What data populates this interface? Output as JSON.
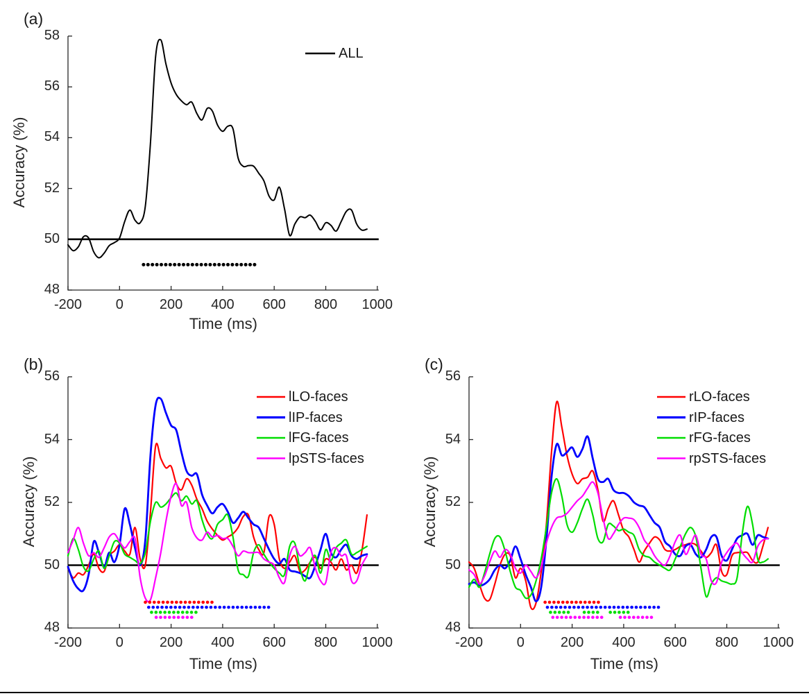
{
  "figure": {
    "background": "#ffffff",
    "bottom_rule_color": "#000000",
    "axis_color": "#262626"
  },
  "chart_data": {
    "type": "line",
    "x_start": -200,
    "x_step": 20,
    "panels": [
      {
        "id": "a",
        "tag": "(a)",
        "xlabel": "Time (ms)",
        "ylabel": "Accuracy (%)",
        "xlim": [
          -200,
          1000
        ],
        "ylim": [
          48,
          58
        ],
        "xticks": [
          -200,
          0,
          200,
          400,
          600,
          800,
          1000
        ],
        "yticks": [
          48,
          50,
          52,
          54,
          56,
          58
        ],
        "chance_level": 50,
        "legend_position": "upper right inside",
        "grid": false,
        "series": [
          {
            "name": "ALL",
            "color": "#000000",
            "values": [
              49.78,
              49.55,
              49.7,
              50.1,
              50.05,
              49.5,
              49.27,
              49.45,
              49.75,
              49.87,
              50.05,
              50.7,
              51.15,
              50.75,
              50.65,
              51.3,
              53.8,
              57.2,
              57.85,
              56.9,
              56.15,
              55.7,
              55.45,
              55.3,
              55.4,
              54.95,
              54.7,
              55.15,
              55.05,
              54.5,
              54.25,
              54.45,
              54.35,
              53.2,
              52.87,
              52.9,
              52.88,
              52.6,
              52.3,
              51.7,
              51.55,
              52.05,
              51.2,
              50.15,
              50.6,
              50.88,
              50.85,
              50.95,
              50.7,
              50.37,
              50.65,
              50.55,
              50.32,
              50.7,
              51.1,
              51.15,
              50.6,
              50.36,
              50.4
            ]
          }
        ],
        "significance_markers": [
          {
            "name": "ALL",
            "color": "#000000",
            "y": 49.0,
            "segments_ms": [
              [
                93,
                535
              ]
            ]
          }
        ]
      },
      {
        "id": "b",
        "tag": "(b)",
        "xlabel": "Time (ms)",
        "ylabel": "Accuracy (%)",
        "xlim": [
          -200,
          1000
        ],
        "ylim": [
          48,
          56
        ],
        "xticks": [
          -200,
          0,
          200,
          400,
          600,
          800,
          1000
        ],
        "yticks": [
          48,
          50,
          52,
          54,
          56
        ],
        "chance_level": 50,
        "legend_position": "upper right inside",
        "grid": false,
        "series": [
          {
            "name": "lLO-faces",
            "color": "#ff0000",
            "values": [
              49.9,
              49.6,
              49.75,
              49.7,
              50.0,
              50.35,
              49.9,
              49.8,
              50.3,
              50.45,
              50.65,
              50.45,
              50.35,
              51.2,
              50.2,
              50.0,
              51.7,
              53.8,
              53.4,
              53.1,
              53.15,
              52.6,
              52.4,
              52.75,
              52.55,
              52.1,
              51.8,
              51.4,
              51.15,
              50.95,
              50.8,
              50.9,
              51.0,
              51.2,
              51.55,
              51.6,
              50.9,
              50.5,
              50.4,
              51.55,
              51.3,
              50.2,
              49.9,
              50.1,
              50.3,
              49.8,
              49.85,
              50.1,
              50.25,
              49.9,
              50.2,
              50.1,
              49.85,
              50.2,
              49.85,
              50.0,
              49.75,
              50.45,
              51.6
            ]
          },
          {
            "name": "lIP-faces",
            "color": "#0000ff",
            "values": [
              49.95,
              49.5,
              49.25,
              49.2,
              49.7,
              50.75,
              50.4,
              49.95,
              50.4,
              50.1,
              50.65,
              51.8,
              51.3,
              50.55,
              50.0,
              50.8,
              53.5,
              55.1,
              55.3,
              54.85,
              54.45,
              54.3,
              53.6,
              53.0,
              52.85,
              52.9,
              52.25,
              51.9,
              51.65,
              51.85,
              51.95,
              51.7,
              51.35,
              51.5,
              51.7,
              51.5,
              51.3,
              51.2,
              50.85,
              50.5,
              50.2,
              50.05,
              50.2,
              49.85,
              49.8,
              49.75,
              49.65,
              49.6,
              50.0,
              50.5,
              51.0,
              50.4,
              50.25,
              50.5,
              50.65,
              50.3,
              50.2,
              50.3,
              50.35
            ]
          },
          {
            "name": "lFG-faces",
            "color": "#00dd00",
            "values": [
              50.3,
              50.85,
              50.5,
              49.95,
              49.82,
              50.2,
              50.45,
              49.9,
              50.3,
              50.75,
              50.7,
              50.35,
              50.25,
              50.15,
              50.05,
              50.4,
              51.4,
              52.0,
              51.85,
              51.95,
              52.15,
              52.3,
              52.05,
              52.2,
              51.95,
              52.05,
              51.45,
              51.0,
              50.85,
              51.3,
              51.45,
              51.6,
              50.9,
              49.85,
              49.7,
              49.65,
              50.4,
              50.65,
              50.35,
              50.1,
              49.9,
              49.75,
              49.7,
              50.6,
              50.7,
              49.9,
              49.5,
              50.1,
              50.3,
              49.75,
              50.5,
              50.15,
              50.55,
              50.7,
              50.8,
              50.35,
              50.4,
              50.5,
              50.6
            ]
          },
          {
            "name": "lpSTS-faces",
            "color": "#ff00ff",
            "values": [
              50.4,
              50.8,
              51.2,
              50.7,
              50.3,
              50.4,
              50.25,
              50.55,
              50.9,
              51.0,
              50.75,
              50.55,
              50.75,
              50.85,
              49.6,
              48.95,
              48.9,
              49.6,
              50.4,
              51.4,
              52.2,
              52.6,
              51.9,
              52.0,
              51.2,
              50.87,
              50.8,
              51.05,
              50.9,
              50.95,
              50.85,
              50.85,
              50.6,
              50.3,
              50.45,
              50.4,
              50.4,
              50.4,
              50.2,
              50.1,
              50.0,
              49.6,
              49.45,
              50.3,
              50.6,
              50.3,
              50.4,
              50.55,
              49.9,
              49.5,
              49.45,
              50.4,
              50.55,
              50.3,
              50.3,
              49.5,
              49.5,
              50.0,
              50.3
            ]
          }
        ],
        "significance_markers": [
          {
            "name": "lLO-faces",
            "color": "#ff0000",
            "y": 48.82,
            "segments_ms": [
              [
                100,
                360
              ]
            ]
          },
          {
            "name": "lIP-faces",
            "color": "#0000ff",
            "y": 48.66,
            "segments_ms": [
              [
                113,
                580
              ]
            ]
          },
          {
            "name": "lFG-faces",
            "color": "#00dd00",
            "y": 48.5,
            "segments_ms": [
              [
                124,
                309
              ]
            ]
          },
          {
            "name": "lpSTS-faces",
            "color": "#ff00ff",
            "y": 48.34,
            "segments_ms": [
              [
                142,
                292
              ]
            ]
          }
        ]
      },
      {
        "id": "c",
        "tag": "(c)",
        "xlabel": "Time (ms)",
        "ylabel": "Accuracy (%)",
        "xlim": [
          -200,
          1000
        ],
        "ylim": [
          48,
          56
        ],
        "xticks": [
          -200,
          0,
          200,
          400,
          600,
          800,
          1000
        ],
        "yticks": [
          48,
          50,
          52,
          54,
          56
        ],
        "chance_level": 50,
        "legend_position": "upper right inside",
        "grid": false,
        "series": [
          {
            "name": "rLO-faces",
            "color": "#ff0000",
            "values": [
              50.1,
              49.9,
              49.4,
              48.95,
              48.9,
              49.4,
              50.0,
              50.35,
              50.3,
              49.6,
              49.9,
              49.5,
              48.65,
              48.8,
              49.8,
              51.3,
              53.6,
              55.2,
              54.4,
              53.5,
              52.9,
              52.6,
              52.75,
              52.8,
              53.0,
              52.4,
              51.4,
              51.8,
              52.05,
              51.6,
              51.1,
              50.9,
              50.5,
              50.1,
              50.45,
              50.7,
              50.9,
              50.8,
              50.5,
              50.45,
              50.5,
              50.6,
              50.65,
              50.7,
              50.65,
              50.45,
              50.25,
              50.4,
              50.65,
              49.8,
              49.7,
              50.3,
              50.4,
              50.4,
              50.4,
              50.15,
              50.1,
              50.6,
              51.2
            ]
          },
          {
            "name": "rIP-faces",
            "color": "#0000ff",
            "values": [
              49.4,
              49.45,
              49.35,
              49.4,
              49.55,
              49.85,
              50.0,
              49.9,
              50.15,
              50.6,
              50.2,
              49.7,
              49.3,
              48.85,
              49.3,
              50.8,
              52.8,
              53.85,
              53.5,
              53.6,
              53.75,
              53.45,
              53.7,
              54.1,
              53.4,
              52.75,
              52.65,
              52.75,
              52.4,
              52.3,
              52.3,
              52.2,
              52.0,
              51.9,
              51.85,
              51.6,
              51.35,
              51.2,
              50.75,
              50.6,
              50.35,
              50.3,
              50.6,
              50.65,
              50.35,
              50.25,
              50.5,
              50.9,
              50.9,
              50.3,
              50.15,
              50.5,
              50.85,
              50.95,
              51.0,
              50.65,
              50.95,
              50.9,
              50.85
            ]
          },
          {
            "name": "rFG-faces",
            "color": "#00dd00",
            "values": [
              49.3,
              49.55,
              49.3,
              49.75,
              50.35,
              50.85,
              50.9,
              50.45,
              49.8,
              49.3,
              49.2,
              48.95,
              49.05,
              49.5,
              50.2,
              51.2,
              52.3,
              52.75,
              52.2,
              51.3,
              51.05,
              51.35,
              51.8,
              52.1,
              51.6,
              50.85,
              50.75,
              51.3,
              51.25,
              51.1,
              51.15,
              51.05,
              50.95,
              50.5,
              50.3,
              50.25,
              50.1,
              50.0,
              49.9,
              49.85,
              50.2,
              50.6,
              51.0,
              51.2,
              50.9,
              49.9,
              49.0,
              49.4,
              49.6,
              49.5,
              49.45,
              49.4,
              49.6,
              51.0,
              51.87,
              51.3,
              50.2,
              50.1,
              50.2
            ]
          },
          {
            "name": "rpSTS-faces",
            "color": "#ff00ff",
            "values": [
              49.85,
              49.7,
              49.4,
              49.65,
              50.1,
              50.45,
              50.25,
              50.5,
              50.35,
              49.9,
              49.75,
              50.0,
              49.8,
              49.6,
              49.95,
              50.7,
              51.2,
              51.5,
              51.55,
              51.65,
              51.85,
              52.05,
              52.2,
              52.45,
              52.65,
              52.3,
              51.5,
              50.85,
              51.0,
              51.3,
              51.5,
              51.5,
              51.45,
              51.2,
              50.8,
              50.6,
              50.3,
              50.1,
              50.0,
              50.3,
              50.75,
              50.95,
              50.35,
              50.65,
              50.95,
              50.35,
              50.2,
              49.5,
              49.45,
              50.1,
              50.4,
              50.6,
              50.7,
              50.4,
              50.2,
              50.1,
              50.6,
              50.8,
              50.85
            ]
          }
        ],
        "significance_markers": [
          {
            "name": "rLO-faces",
            "color": "#ff0000",
            "y": 48.82,
            "segments_ms": [
              [
                95,
                317
              ]
            ]
          },
          {
            "name": "rIP-faces",
            "color": "#0000ff",
            "y": 48.66,
            "segments_ms": [
              [
                104,
                551
              ]
            ]
          },
          {
            "name": "rFG-faces",
            "color": "#00dd00",
            "y": 48.5,
            "segments_ms": [
              [
                116,
                190
              ],
              [
                247,
                306
              ],
              [
                348,
                434
              ]
            ]
          },
          {
            "name": "rpSTS-faces",
            "color": "#ff00ff",
            "y": 48.34,
            "segments_ms": [
              [
                125,
                326
              ],
              [
                387,
                516
              ]
            ]
          }
        ]
      }
    ]
  }
}
